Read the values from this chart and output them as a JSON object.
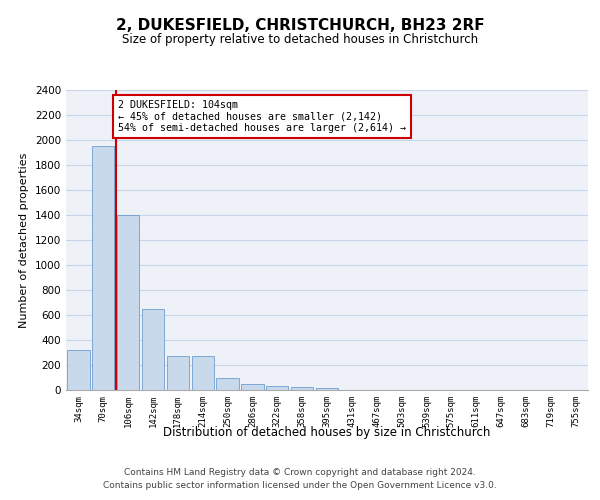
{
  "title": "2, DUKESFIELD, CHRISTCHURCH, BH23 2RF",
  "subtitle": "Size of property relative to detached houses in Christchurch",
  "xlabel": "Distribution of detached houses by size in Christchurch",
  "ylabel": "Number of detached properties",
  "footer_line1": "Contains HM Land Registry data © Crown copyright and database right 2024.",
  "footer_line2": "Contains public sector information licensed under the Open Government Licence v3.0.",
  "categories": [
    "34sqm",
    "70sqm",
    "106sqm",
    "142sqm",
    "178sqm",
    "214sqm",
    "250sqm",
    "286sqm",
    "322sqm",
    "358sqm",
    "395sqm",
    "431sqm",
    "467sqm",
    "503sqm",
    "539sqm",
    "575sqm",
    "611sqm",
    "647sqm",
    "683sqm",
    "719sqm",
    "755sqm"
  ],
  "values": [
    320,
    1950,
    1400,
    650,
    270,
    270,
    100,
    45,
    35,
    25,
    20,
    0,
    0,
    0,
    0,
    0,
    0,
    0,
    0,
    0,
    0
  ],
  "bar_color": "#c9d9ec",
  "bar_edge_color": "#5b8fc9",
  "grid_color": "#c8d4e8",
  "bg_color": "#eef2f8",
  "vline_color": "#cc0000",
  "vline_x": 1.5,
  "annotation_text": "2 DUKESFIELD: 104sqm\n← 45% of detached houses are smaller (2,142)\n54% of semi-detached houses are larger (2,614) →",
  "annotation_box_facecolor": "#ffffff",
  "annotation_box_edgecolor": "#cc0000",
  "ylim": [
    0,
    2400
  ],
  "yticks": [
    0,
    200,
    400,
    600,
    800,
    1000,
    1200,
    1400,
    1600,
    1800,
    2000,
    2200,
    2400
  ]
}
